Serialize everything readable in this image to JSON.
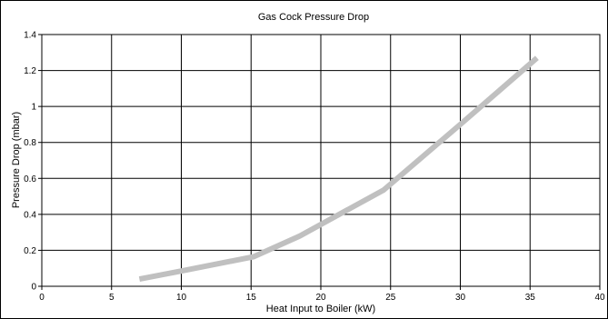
{
  "chart_data": {
    "type": "line",
    "title": "Gas Cock Pressure Drop",
    "xlabel": "Heat Input to Boiler (kW)",
    "ylabel": "Pressure Drop (mbar)",
    "xlim": [
      0,
      40
    ],
    "ylim": [
      0,
      1.4
    ],
    "xticks": [
      0,
      5,
      10,
      15,
      20,
      25,
      30,
      35,
      40
    ],
    "yticks": [
      0,
      0.2,
      0.4,
      0.6,
      0.8,
      1,
      1.2,
      1.4
    ],
    "xtick_labels": [
      "0",
      "5",
      "10",
      "15",
      "20",
      "25",
      "30",
      "35",
      "40"
    ],
    "ytick_labels": [
      "0",
      "0.2",
      "0.4",
      "0.6",
      "0.8",
      "1",
      "1.2",
      "1.4"
    ],
    "grid": true,
    "legend": false,
    "series": [
      {
        "color": "#c0c0c0",
        "x": [
          7,
          10,
          15.2,
          18.5,
          24.5,
          30,
          35.5
        ],
        "y": [
          0.04,
          0.085,
          0.165,
          0.28,
          0.535,
          0.9,
          1.27
        ]
      }
    ]
  }
}
